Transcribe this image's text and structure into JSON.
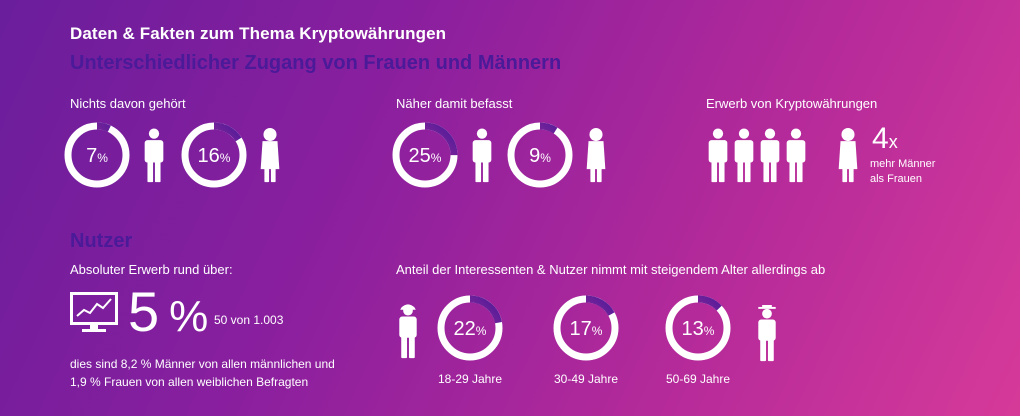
{
  "header": {
    "title": "Daten & Fakten zum Thema Kryptowährungen",
    "subtitle": "Unterschiedlicher Zugang von Frauen und Männern"
  },
  "sections": {
    "nichts": {
      "label": "Nichts davon gehört"
    },
    "naeher": {
      "label": "Näher damit befasst"
    },
    "erwerb": {
      "label": "Erwerb von Kryptowährungen",
      "ratio": "4",
      "ratio_unit": "x",
      "ratio_text_1": "mehr Männer",
      "ratio_text_2": "als Frauen"
    },
    "nutzer": {
      "heading": "Nutzer",
      "label": "Absoluter Erwerb rund über:",
      "big_value": "5",
      "big_unit": "%",
      "small": "50 von 1.003",
      "desc_1": "dies sind 8,2 %  Männer von allen männlichen und",
      "desc_2": "1,9 %  Frauen von allen weiblichen  Befragten"
    },
    "alter": {
      "label": "Anteil der Interessenten & Nutzer nimmt mit steigendem Alter allerdings ab"
    }
  },
  "chart_data": {
    "type": "donut",
    "series": [
      {
        "group": "Nichts davon gehört",
        "gender": "Männer",
        "value": 7
      },
      {
        "group": "Nichts davon gehört",
        "gender": "Frauen",
        "value": 16
      },
      {
        "group": "Näher damit befasst",
        "gender": "Männer",
        "value": 25
      },
      {
        "group": "Näher damit befasst",
        "gender": "Frauen",
        "value": 9
      },
      {
        "group": "Alter",
        "category": "18-29 Jahre",
        "value": 22
      },
      {
        "group": "Alter",
        "category": "30-49 Jahre",
        "value": 17
      },
      {
        "group": "Alter",
        "category": "50-69 Jahre",
        "value": 13
      }
    ],
    "unit": "%",
    "colors": {
      "ring": "#ffffff",
      "arc_start": "#e5399a",
      "arc_end": "#4a1a99"
    }
  }
}
